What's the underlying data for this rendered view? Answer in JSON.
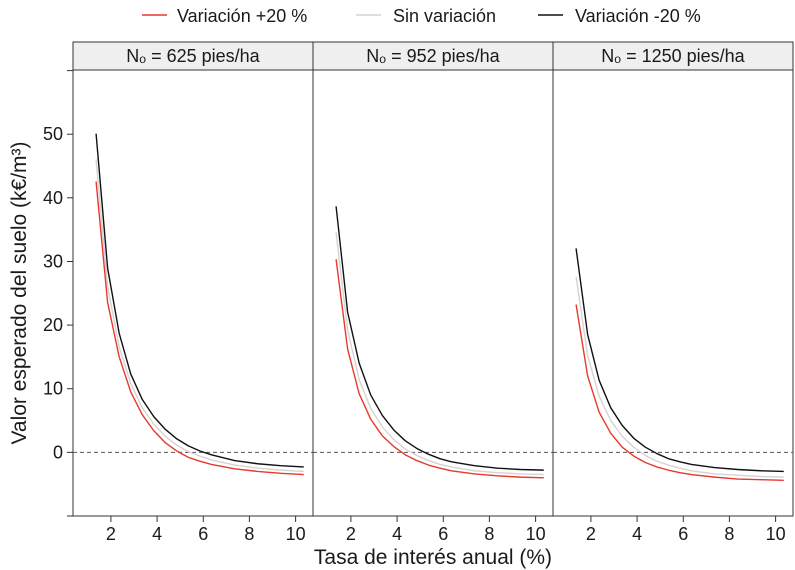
{
  "legend": {
    "items": [
      {
        "label": "Variación +20 %",
        "color": "#e8392a"
      },
      {
        "label": "Sin variación",
        "color": "#d4d4d4"
      },
      {
        "label": "Variación -20 %",
        "color": "#111111"
      }
    ]
  },
  "chart_data": {
    "type": "line",
    "xlabel": "Tasa de interés anual (%)",
    "ylabel": "Valor esperado del suelo (k€/m³)",
    "xlim": [
      0,
      10.4
    ],
    "ylim": [
      -10,
      60
    ],
    "xticks": [
      "2",
      "4",
      "6",
      "8",
      "10"
    ],
    "yticks": [
      "0",
      "10",
      "20",
      "30",
      "40",
      "50"
    ],
    "reference_line": {
      "y": 0,
      "style": "dashed"
    },
    "x": [
      1,
      1.5,
      2,
      2.5,
      3,
      3.5,
      4,
      4.5,
      5,
      5.5,
      6,
      7,
      8,
      9,
      10
    ],
    "grid": false,
    "panels": [
      {
        "title": "Nₒ = 625 pies/ha",
        "series": [
          {
            "name": "Variación +20 %",
            "color": "#e8392a",
            "values": [
              42.5,
              23.5,
              15.0,
              9.5,
              5.9,
              3.4,
              1.5,
              0.2,
              -0.8,
              -1.4,
              -1.9,
              -2.6,
              -3.0,
              -3.3,
              -3.5
            ]
          },
          {
            "name": "Sin variación",
            "color": "#d4d4d4",
            "values": [
              46.0,
              26.0,
              16.6,
              10.8,
              7.0,
              4.4,
              2.5,
              1.1,
              0.1,
              -0.6,
              -1.2,
              -2.0,
              -2.5,
              -2.8,
              -3.0
            ]
          },
          {
            "name": "Variación -20 %",
            "color": "#111111",
            "values": [
              50.0,
              28.9,
              18.7,
              12.3,
              8.3,
              5.6,
              3.6,
              2.1,
              1.0,
              0.2,
              -0.4,
              -1.3,
              -1.8,
              -2.1,
              -2.3
            ]
          }
        ]
      },
      {
        "title": "Nₒ = 952 pies/ha",
        "series": [
          {
            "name": "Variación +20 %",
            "color": "#e8392a",
            "values": [
              30.3,
              16.2,
              9.2,
              5.2,
              2.6,
              0.9,
              -0.4,
              -1.3,
              -2.0,
              -2.5,
              -2.9,
              -3.4,
              -3.7,
              -3.9,
              -4.0
            ]
          },
          {
            "name": "Sin variación",
            "color": "#d4d4d4",
            "values": [
              34.5,
              19.2,
              11.4,
              6.9,
              4.0,
              2.0,
              0.5,
              -0.5,
              -1.3,
              -1.9,
              -2.3,
              -2.9,
              -3.2,
              -3.4,
              -3.5
            ]
          },
          {
            "name": "Variación -20 %",
            "color": "#111111",
            "values": [
              38.6,
              22.0,
              14.0,
              9.0,
              5.8,
              3.5,
              1.8,
              0.6,
              -0.3,
              -1.0,
              -1.5,
              -2.1,
              -2.5,
              -2.7,
              -2.8
            ]
          }
        ]
      },
      {
        "title": "Nₒ = 1250 pies/ha",
        "series": [
          {
            "name": "Variación +20 %",
            "color": "#e8392a",
            "values": [
              23.2,
              12.0,
              6.3,
              3.0,
              0.8,
              -0.6,
              -1.6,
              -2.3,
              -2.8,
              -3.2,
              -3.5,
              -3.9,
              -4.2,
              -4.3,
              -4.4
            ]
          },
          {
            "name": "Sin variación",
            "color": "#d4d4d4",
            "values": [
              27.6,
              15.2,
              8.8,
              5.0,
              2.5,
              0.8,
              -0.5,
              -1.4,
              -2.0,
              -2.5,
              -2.9,
              -3.4,
              -3.6,
              -3.8,
              -3.9
            ]
          },
          {
            "name": "Variación -20 %",
            "color": "#111111",
            "values": [
              32.0,
              18.5,
              11.3,
              7.0,
              4.2,
              2.2,
              0.8,
              -0.2,
              -1.0,
              -1.5,
              -1.9,
              -2.4,
              -2.7,
              -2.9,
              -3.0
            ]
          }
        ]
      }
    ]
  }
}
